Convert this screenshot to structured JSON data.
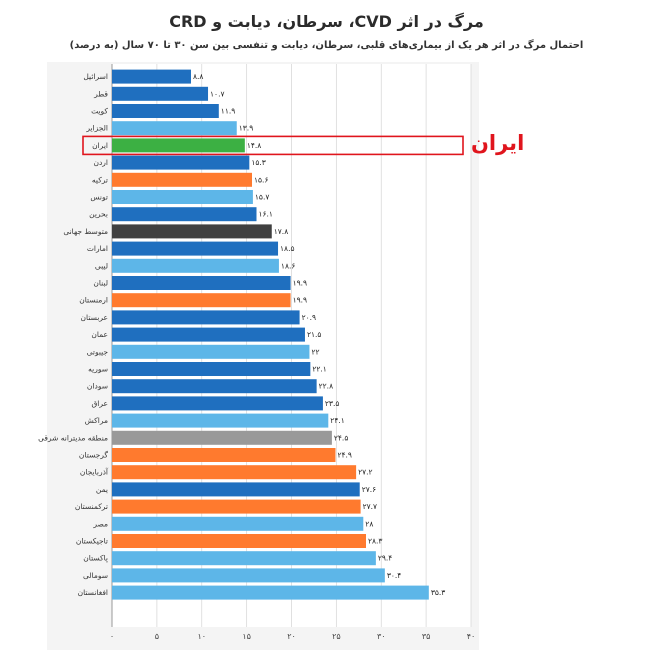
{
  "chart_data": {
    "type": "bar",
    "orientation": "horizontal",
    "title": "مرگ در اثر CVD، سرطان، دیابت و CRD",
    "subtitle": "احتمال مرگ در اثر هر یک از بیماری‌های قلبی، سرطان، دیابت و تنفسی بین سن ۳۰ تا ۷۰ سال (به درصد)",
    "categories": [
      "اسرائیل",
      "قطر",
      "کویت",
      "الجزایر",
      "ایران",
      "اردن",
      "ترکیه",
      "تونس",
      "بحرین",
      "متوسط جهانی",
      "امارات",
      "لیبی",
      "لبنان",
      "ارمنستان",
      "عربستان",
      "عمان",
      "جیبوتی",
      "سوریه",
      "سودان",
      "عراق",
      "مراکش",
      "منطقه مدیترانه شرقی",
      "گرجستان",
      "آذربایجان",
      "یمن",
      "ترکمنستان",
      "مصر",
      "تاجیکستان",
      "پاکستان",
      "سومالی",
      "افغانستان"
    ],
    "values": [
      8.8,
      10.7,
      11.9,
      13.9,
      14.8,
      15.3,
      15.6,
      15.7,
      16.1,
      17.8,
      18.5,
      18.6,
      19.9,
      19.9,
      20.9,
      21.5,
      22,
      22.1,
      22.8,
      23.5,
      24.1,
      24.5,
      24.9,
      27.2,
      27.6,
      27.7,
      28,
      28.3,
      29.4,
      30.4,
      35.3
    ],
    "value_labels": [
      "۸.۸",
      "۱۰.۷",
      "۱۱.۹",
      "۱۳.۹",
      "۱۴.۸",
      "۱۵.۳",
      "۱۵.۶",
      "۱۵.۷",
      "۱۶.۱",
      "۱۷.۸",
      "۱۸.۵",
      "۱۸.۶",
      "۱۹.۹",
      "۱۹.۹",
      "۲۰.۹",
      "۲۱.۵",
      "۲۲",
      "۲۲.۱",
      "۲۲.۸",
      "۲۳.۵",
      "۲۴.۱",
      "۲۴.۵",
      "۲۴.۹",
      "۲۷.۲",
      "۲۷.۶",
      "۲۷.۷",
      "۲۸",
      "۲۸.۳",
      "۲۹.۴",
      "۳۰.۴",
      "۳۵.۳"
    ],
    "colors": [
      "#1f6fbf",
      "#1f6fbf",
      "#1f6fbf",
      "#5db6e8",
      "#3cb043",
      "#1f6fbf",
      "#ff7a2e",
      "#5db6e8",
      "#1f6fbf",
      "#404040",
      "#1f6fbf",
      "#5db6e8",
      "#1f6fbf",
      "#ff7a2e",
      "#1f6fbf",
      "#1f6fbf",
      "#5db6e8",
      "#1f6fbf",
      "#1f6fbf",
      "#1f6fbf",
      "#5db6e8",
      "#999999",
      "#ff7a2e",
      "#ff7a2e",
      "#1f6fbf",
      "#ff7a2e",
      "#5db6e8",
      "#ff7a2e",
      "#5db6e8",
      "#5db6e8",
      "#5db6e8"
    ],
    "x_ticks": [
      0,
      5,
      10,
      15,
      20,
      25,
      30,
      35,
      40
    ],
    "x_tick_labels": [
      "۰",
      "۵",
      "۱۰",
      "۱۵",
      "۲۰",
      "۲۵",
      "۳۰",
      "۳۵",
      "۴۰"
    ],
    "xlim": [
      0,
      40
    ],
    "grid": true,
    "highlight_category": "ایران",
    "highlight_color": "#e0151d",
    "annotation": "ایران"
  }
}
